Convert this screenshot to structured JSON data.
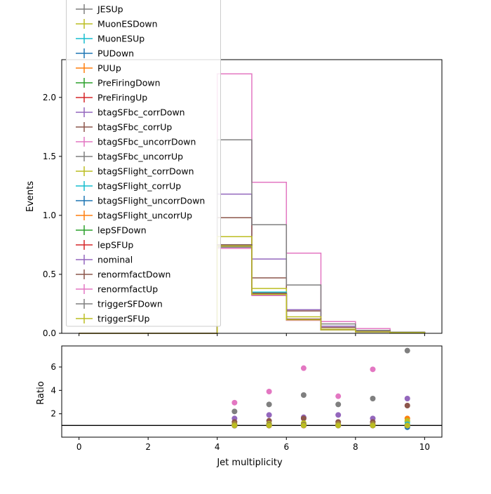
{
  "chart_data": {
    "type": "step-histogram-with-ratio",
    "xlabel": "Jet multiplicity",
    "top_ylabel": "Events",
    "bottom_ylabel": "Ratio",
    "xlim": [
      -0.5,
      10.5
    ],
    "top_ylim": [
      0,
      2.32
    ],
    "bottom_ylim": [
      0,
      7.8
    ],
    "xticks": [
      0,
      2,
      4,
      6,
      8,
      10
    ],
    "top_yticks": [
      0.0,
      0.5,
      1.0,
      1.5,
      2.0
    ],
    "bottom_yticks": [
      2,
      4,
      6
    ],
    "bin_edges": [
      4,
      5,
      6,
      7,
      8,
      9,
      10
    ],
    "ratio_reference": 1.0,
    "legend_placement": "upper-left (overflowing top)",
    "series": [
      {
        "name": "JESUp",
        "color": "#7f7f7f",
        "values": [
          0.74,
          0.33,
          0.12,
          0.03,
          0.012,
          0.005
        ],
        "ratio": [
          1.02,
          1.03,
          1.05,
          1.0,
          1.02,
          1.0
        ]
      },
      {
        "name": "MuonESDown",
        "color": "#bcbd22",
        "values": [
          0.74,
          0.33,
          0.115,
          0.03,
          0.012,
          0.005
        ],
        "ratio": [
          1.01,
          1.02,
          1.0,
          1.0,
          1.0,
          1.0
        ]
      },
      {
        "name": "MuonESUp",
        "color": "#17becf",
        "values": [
          0.735,
          0.33,
          0.115,
          0.03,
          0.012,
          0.005
        ],
        "ratio": [
          1.0,
          1.0,
          1.0,
          1.0,
          1.0,
          1.3
        ]
      },
      {
        "name": "PUDown",
        "color": "#1f77b4",
        "values": [
          0.73,
          0.33,
          0.115,
          0.03,
          0.012,
          0.005
        ],
        "ratio": [
          0.98,
          1.0,
          1.0,
          1.0,
          1.0,
          0.85
        ]
      },
      {
        "name": "PUUp",
        "color": "#ff7f0e",
        "values": [
          0.74,
          0.34,
          0.12,
          0.03,
          0.012,
          0.006
        ],
        "ratio": [
          1.0,
          1.02,
          1.0,
          1.0,
          1.0,
          1.6
        ]
      },
      {
        "name": "PreFiringDown",
        "color": "#2ca02c",
        "values": [
          0.735,
          0.33,
          0.115,
          0.03,
          0.012,
          0.005
        ],
        "ratio": [
          1.0,
          1.0,
          1.0,
          1.0,
          1.0,
          1.0
        ]
      },
      {
        "name": "PreFiringUp",
        "color": "#d62728",
        "values": [
          0.735,
          0.33,
          0.115,
          0.03,
          0.012,
          0.005
        ],
        "ratio": [
          1.0,
          1.0,
          1.0,
          1.0,
          1.0,
          1.0
        ]
      },
      {
        "name": "btagSFbc_corrDown",
        "color": "#9467bd",
        "values": [
          1.18,
          0.63,
          0.2,
          0.06,
          0.02,
          0.01
        ],
        "ratio": [
          1.6,
          1.9,
          1.7,
          1.9,
          1.6,
          3.3
        ]
      },
      {
        "name": "btagSFbc_corrUp",
        "color": "#8c564b",
        "values": [
          0.98,
          0.47,
          0.19,
          0.05,
          0.015,
          0.008
        ],
        "ratio": [
          1.3,
          1.4,
          1.6,
          1.3,
          1.3,
          2.7
        ]
      },
      {
        "name": "btagSFbc_uncorrDown",
        "color": "#e377c2",
        "values": [
          2.2,
          1.28,
          0.68,
          0.1,
          0.04,
          0.01
        ],
        "ratio": [
          2.95,
          3.9,
          5.9,
          3.5,
          5.8,
          1.0
        ]
      },
      {
        "name": "btagSFbc_uncorrUp",
        "color": "#7f7f7f",
        "values": [
          1.64,
          0.92,
          0.41,
          0.08,
          0.025,
          0.01
        ],
        "ratio": [
          2.2,
          2.8,
          3.6,
          2.8,
          3.3,
          7.4
        ]
      },
      {
        "name": "btagSFlight_corrDown",
        "color": "#bcbd22",
        "values": [
          0.82,
          0.38,
          0.14,
          0.035,
          0.014,
          0.006
        ],
        "ratio": [
          1.1,
          1.15,
          1.2,
          1.1,
          1.1,
          1.4
        ]
      },
      {
        "name": "btagSFlight_corrUp",
        "color": "#17becf",
        "values": [
          0.75,
          0.35,
          0.12,
          0.03,
          0.012,
          0.005
        ],
        "ratio": [
          1.0,
          1.05,
          1.05,
          1.0,
          1.0,
          1.1
        ]
      },
      {
        "name": "btagSFlight_uncorrDown",
        "color": "#1f77b4",
        "values": [
          0.74,
          0.34,
          0.12,
          0.03,
          0.012,
          0.005
        ],
        "ratio": [
          1.0,
          1.0,
          1.0,
          1.0,
          1.0,
          1.0
        ]
      },
      {
        "name": "btagSFlight_uncorrUp",
        "color": "#ff7f0e",
        "values": [
          0.74,
          0.34,
          0.12,
          0.03,
          0.012,
          0.005
        ],
        "ratio": [
          1.0,
          1.0,
          1.0,
          1.0,
          1.0,
          1.0
        ]
      },
      {
        "name": "lepSFDown",
        "color": "#2ca02c",
        "values": [
          0.735,
          0.33,
          0.115,
          0.03,
          0.012,
          0.005
        ],
        "ratio": [
          1.0,
          1.0,
          1.0,
          1.0,
          1.0,
          1.0
        ]
      },
      {
        "name": "lepSFUp",
        "color": "#d62728",
        "values": [
          0.735,
          0.33,
          0.115,
          0.03,
          0.012,
          0.005
        ],
        "ratio": [
          1.0,
          1.0,
          1.0,
          1.0,
          1.0,
          1.0
        ]
      },
      {
        "name": "nominal",
        "color": "#9467bd",
        "values": [
          0.735,
          0.33,
          0.115,
          0.03,
          0.012,
          0.005
        ],
        "ratio": [
          1.0,
          1.0,
          1.0,
          1.0,
          1.0,
          1.0
        ]
      },
      {
        "name": "renormfactDown",
        "color": "#8c564b",
        "values": [
          0.75,
          0.34,
          0.12,
          0.03,
          0.012,
          0.005
        ],
        "ratio": [
          1.05,
          1.05,
          1.05,
          1.05,
          1.05,
          1.0
        ]
      },
      {
        "name": "renormfactUp",
        "color": "#e377c2",
        "values": [
          0.72,
          0.32,
          0.11,
          0.03,
          0.012,
          0.005
        ],
        "ratio": [
          0.98,
          0.98,
          0.98,
          1.0,
          1.0,
          1.0
        ]
      },
      {
        "name": "triggerSFDown",
        "color": "#7f7f7f",
        "values": [
          0.73,
          0.33,
          0.115,
          0.03,
          0.012,
          0.005
        ],
        "ratio": [
          0.99,
          1.0,
          1.0,
          1.0,
          1.0,
          1.0
        ]
      },
      {
        "name": "triggerSFUp",
        "color": "#bcbd22",
        "values": [
          0.74,
          0.33,
          0.115,
          0.03,
          0.012,
          0.005
        ],
        "ratio": [
          1.0,
          1.0,
          1.0,
          1.0,
          1.0,
          1.0
        ]
      }
    ]
  }
}
